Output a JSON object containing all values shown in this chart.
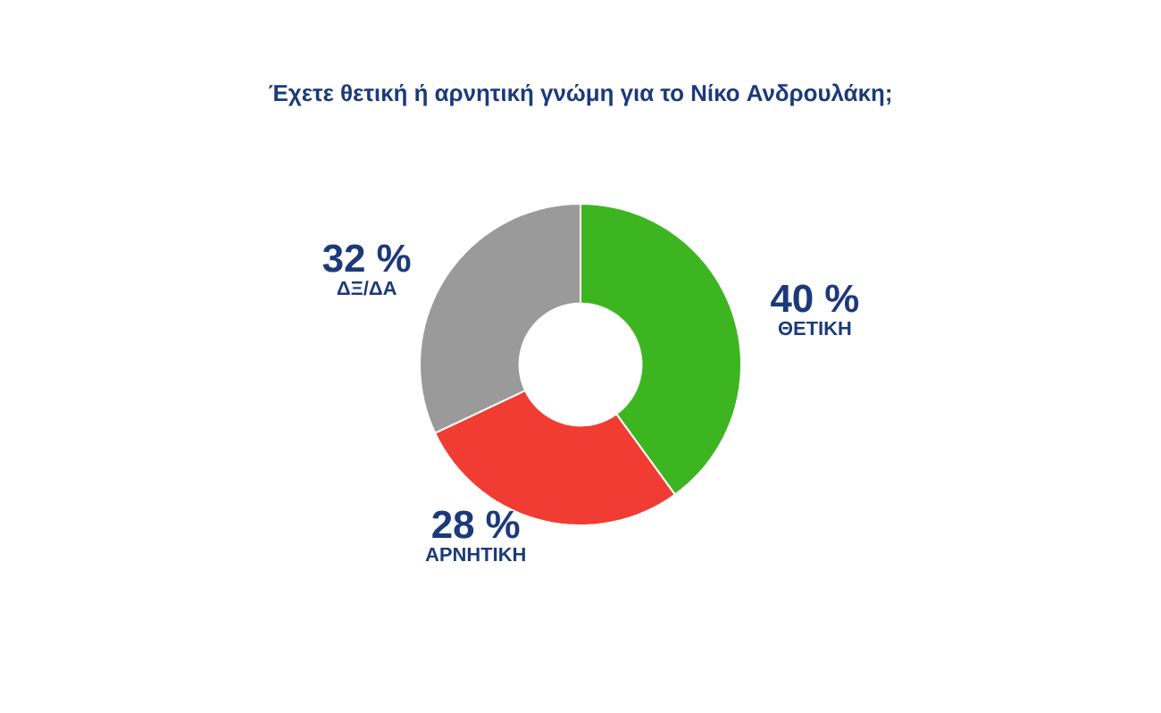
{
  "chart_data": {
    "type": "donut",
    "title": "Έχετε θετική ή αρνητική γνώμη για το Νίκο Ανδρουλάκη;",
    "categories": [
      "ΘΕΤΙΚΗ",
      "ΑΡΝΗΤΙΚΗ",
      "ΔΞ/ΔΑ"
    ],
    "values": [
      40,
      28,
      32
    ],
    "colors": [
      "#3cb521",
      "#f03c32",
      "#9a9a9a"
    ],
    "value_labels": [
      "40 %",
      "28 %",
      "32 %"
    ]
  }
}
